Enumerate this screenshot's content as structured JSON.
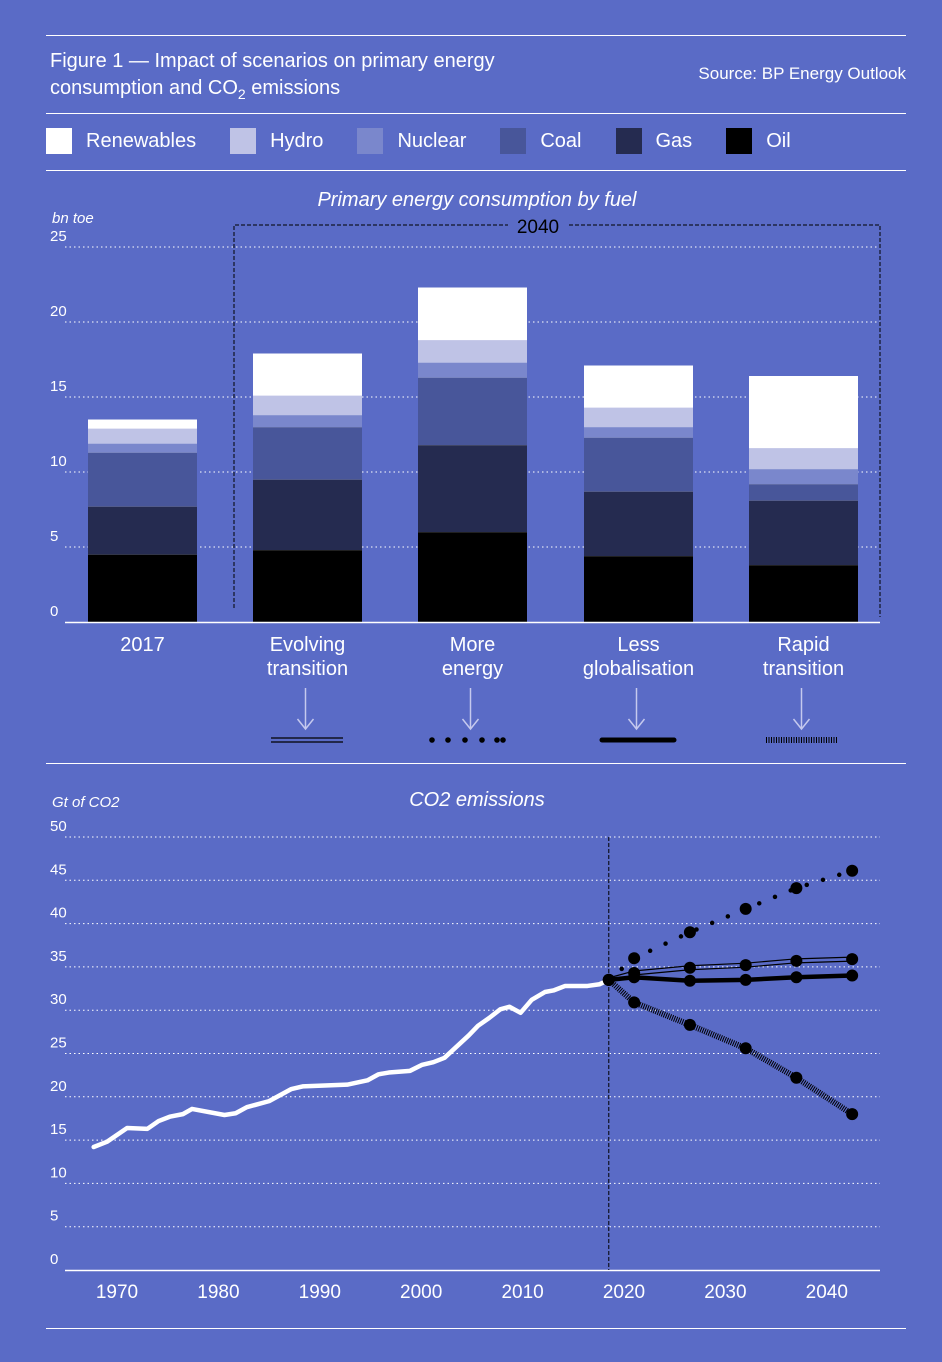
{
  "header": {
    "title_line1": "Figure 1 — Impact of scenarios on primary energy",
    "title_line2_pre": "consumption and CO",
    "title_sub": "2",
    "title_line2_post": " emissions",
    "source": "Source: BP Energy Outlook"
  },
  "legend": [
    {
      "label": "Renewables",
      "color": "#ffffff"
    },
    {
      "label": "Hydro",
      "color": "#bfc3e6"
    },
    {
      "label": "Nuclear",
      "color": "#7a87cc"
    },
    {
      "label": "Coal",
      "color": "#48569a"
    },
    {
      "label": "Gas",
      "color": "#252b50"
    },
    {
      "label": "Oil",
      "color": "#000000"
    }
  ],
  "chart_data": [
    {
      "type": "bar",
      "stacked": true,
      "title": "Primary energy consumption by fuel",
      "ylabel": "bn toe",
      "ylim": [
        0,
        25
      ],
      "yticks": [
        "0",
        "5",
        "10",
        "15",
        "20",
        "25"
      ],
      "bracket_label": "2040",
      "categories": [
        {
          "line1": "2017",
          "line2": ""
        },
        {
          "line1": "Evolving",
          "line2": "transition"
        },
        {
          "line1": "More",
          "line2": "energy"
        },
        {
          "line1": "Less",
          "line2": "globalisation"
        },
        {
          "line1": "Rapid",
          "line2": "transition"
        }
      ],
      "series": [
        {
          "name": "Oil",
          "values": [
            4.5,
            4.8,
            6.0,
            4.4,
            3.8
          ]
        },
        {
          "name": "Gas",
          "values": [
            3.2,
            4.7,
            5.8,
            4.3,
            4.3
          ]
        },
        {
          "name": "Coal",
          "values": [
            3.6,
            3.5,
            4.5,
            3.6,
            1.1
          ]
        },
        {
          "name": "Nuclear",
          "values": [
            0.6,
            0.8,
            1.0,
            0.7,
            1.0
          ]
        },
        {
          "name": "Hydro",
          "values": [
            1.0,
            1.3,
            1.5,
            1.3,
            1.4
          ]
        },
        {
          "name": "Renewables",
          "values": [
            0.6,
            2.8,
            3.5,
            2.8,
            4.8
          ]
        }
      ]
    },
    {
      "type": "line",
      "title": "CO2 emissions",
      "ylabel": "Gt of CO2",
      "ylim": [
        0,
        50
      ],
      "yticks": [
        "0",
        "5",
        "10",
        "15",
        "20",
        "25",
        "30",
        "35",
        "40",
        "45",
        "50"
      ],
      "xticks": [
        "1970",
        "1980",
        "1990",
        "2000",
        "2010",
        "2020",
        "2030",
        "2040"
      ],
      "divider_year": 2018.5,
      "historical": {
        "x": [
          1967.7,
          1969,
          1971,
          1973,
          1974.1,
          1975.2,
          1976.5,
          1977.4,
          1980.6,
          1981.7,
          1982.8,
          1985,
          1987.2,
          1988.3,
          1992.7,
          1994.7,
          1995.8,
          1996.8,
          1998.9,
          2000.1,
          2001.2,
          2002.3,
          2004.7,
          2005.6,
          2006.7,
          2007.8,
          2008.7,
          2009.8,
          2010.9,
          2012.2,
          2013.1,
          2014.2,
          2016.4,
          2017.6,
          2018.5
        ],
        "y": [
          14.2,
          14.8,
          16.4,
          16.3,
          17.2,
          17.7,
          18.0,
          18.6,
          17.9,
          18.1,
          18.8,
          19.5,
          20.9,
          21.2,
          21.4,
          21.9,
          22.6,
          22.8,
          23.0,
          23.7,
          24.0,
          24.5,
          27.1,
          28.2,
          29.1,
          30.1,
          30.4,
          29.7,
          31.2,
          32.1,
          32.3,
          32.8,
          32.8,
          33.0,
          33.5
        ]
      },
      "scenario_x": [
        2018.5,
        2021,
        2026.5,
        2032,
        2037,
        2042.5
      ],
      "series": [
        {
          "name": "Evolving transition",
          "style": "double",
          "y": [
            33.5,
            34.3,
            34.9,
            35.2,
            35.7,
            35.9
          ]
        },
        {
          "name": "More energy",
          "style": "dotted",
          "y": [
            33.5,
            36.0,
            39.0,
            41.7,
            44.1,
            46.1
          ]
        },
        {
          "name": "Less globalisation",
          "style": "thick",
          "y": [
            33.5,
            33.8,
            33.4,
            33.5,
            33.8,
            34.0
          ]
        },
        {
          "name": "Rapid transition",
          "style": "hatched",
          "y": [
            33.5,
            30.9,
            28.3,
            25.6,
            22.2,
            18.0
          ]
        }
      ]
    }
  ]
}
